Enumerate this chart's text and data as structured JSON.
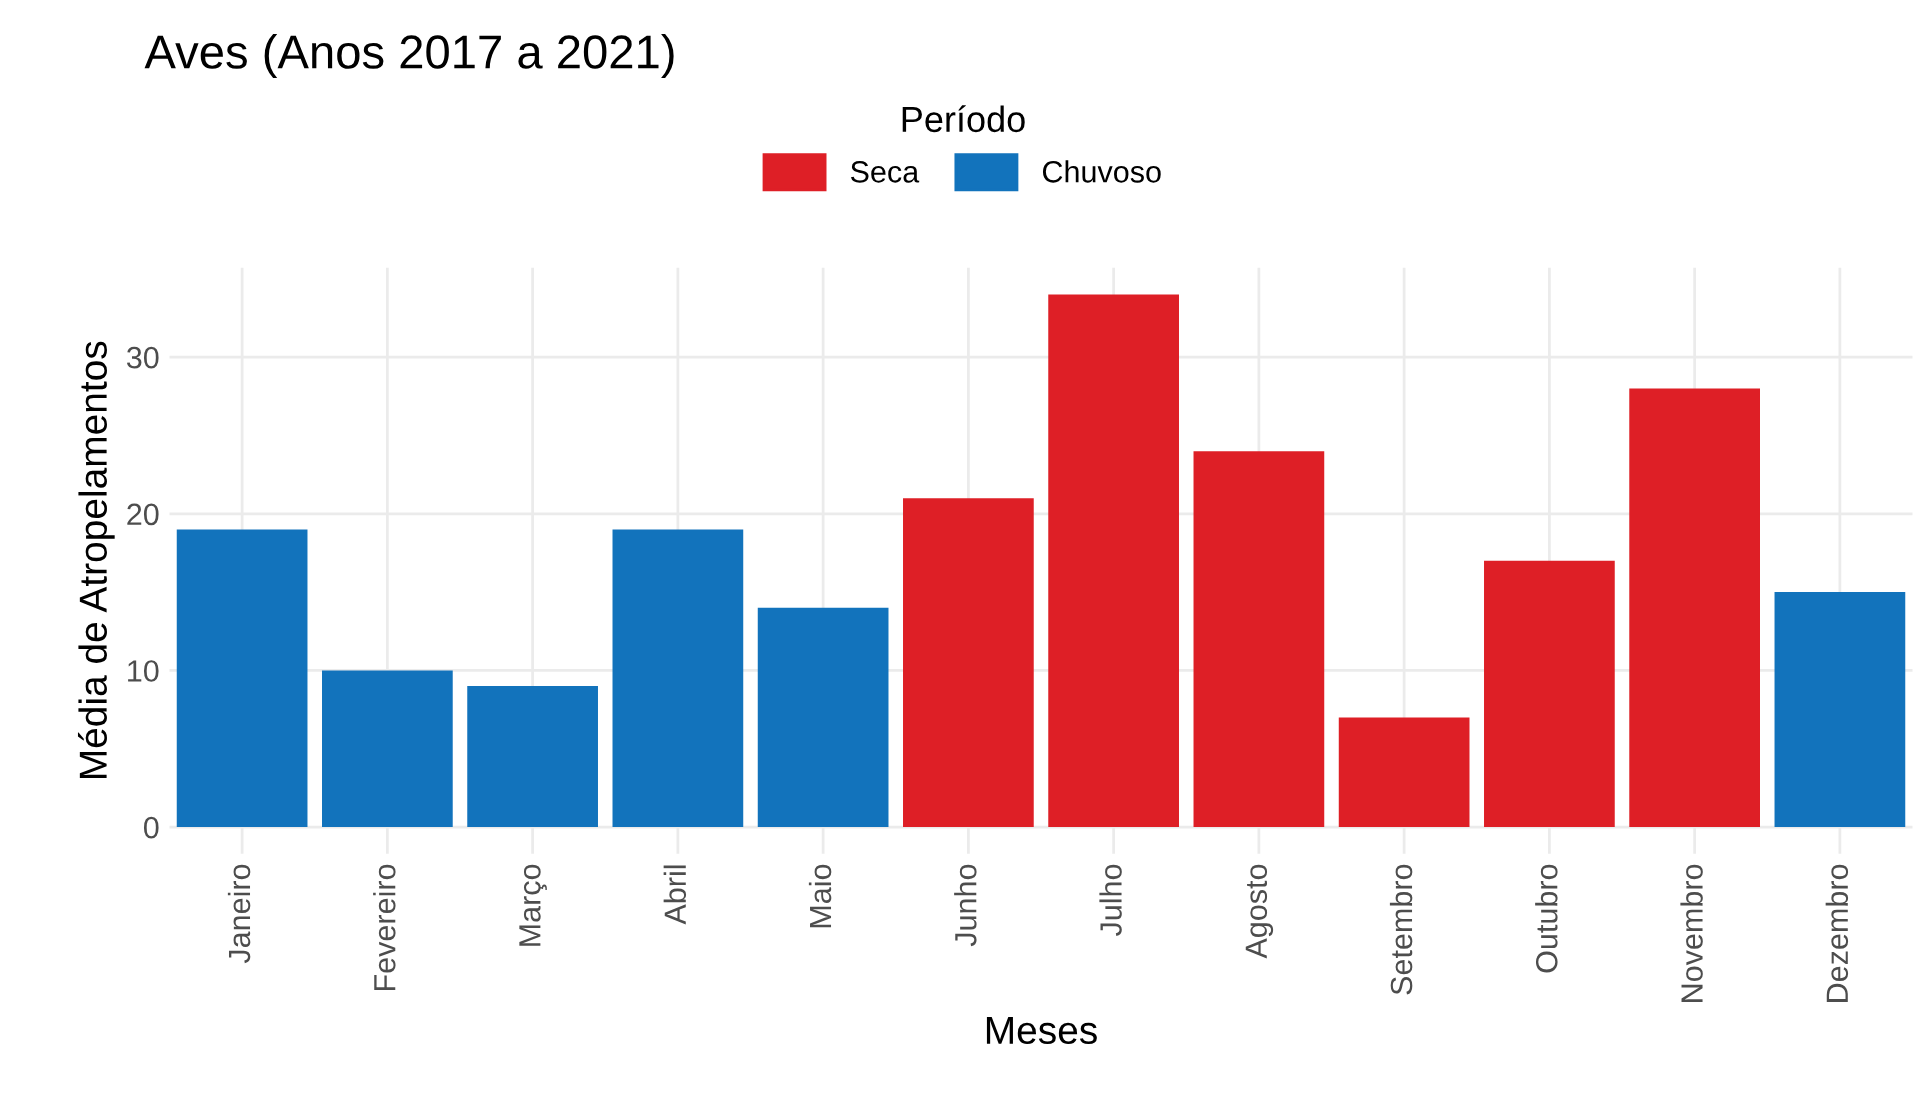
{
  "chart_data": {
    "type": "bar",
    "title": "Aves (Anos 2017 a 2021)",
    "xlabel": "Meses",
    "ylabel": "Média de Atropelamentos",
    "legend_title": "Período",
    "categories": [
      "Janeiro",
      "Fevereiro",
      "Março",
      "Abril",
      "Maio",
      "Junho",
      "Julho",
      "Agosto",
      "Setembro",
      "Outubro",
      "Novembro",
      "Dezembro"
    ],
    "series": [
      {
        "name": "Seca",
        "color": "#de1f26",
        "values": [
          null,
          null,
          null,
          null,
          null,
          21,
          34,
          24,
          7,
          17,
          28,
          null
        ]
      },
      {
        "name": "Chuvoso",
        "color": "#1273bc",
        "values": [
          19,
          10,
          9,
          19,
          14,
          null,
          null,
          null,
          null,
          null,
          null,
          15
        ]
      }
    ],
    "ylim": [
      -1.7,
      35.7
    ],
    "yticks": [
      0,
      10,
      20,
      30
    ],
    "grid": true,
    "legend": "top"
  }
}
